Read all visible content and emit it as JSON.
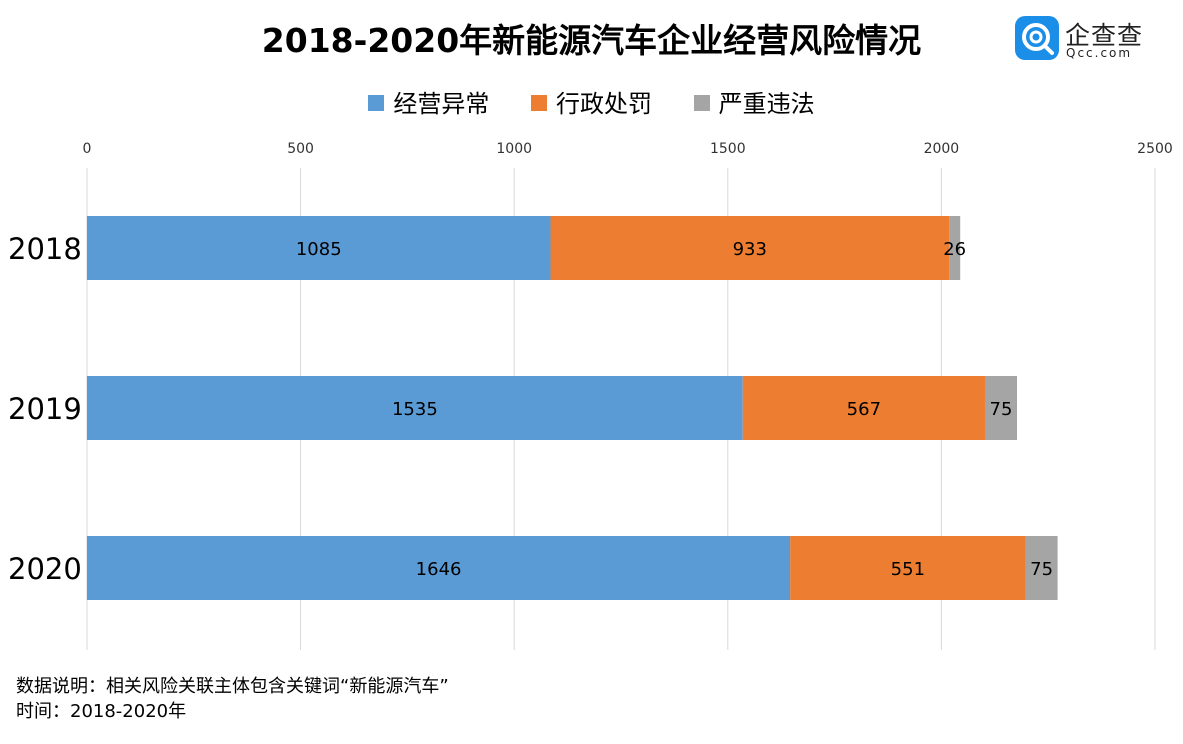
{
  "title": "2018-2020年新能源汽车企业经营风险情况",
  "logo": {
    "cn": "企查查",
    "en": "Qcc.com"
  },
  "chart_data": {
    "type": "bar",
    "orientation": "horizontal",
    "stacked": true,
    "categories": [
      "2018",
      "2019",
      "2020"
    ],
    "series": [
      {
        "name": "经营异常",
        "color": "#5b9bd5",
        "values": [
          1085,
          1535,
          1646
        ]
      },
      {
        "name": "行政处罚",
        "color": "#ed7d31",
        "values": [
          933,
          567,
          551
        ]
      },
      {
        "name": "严重违法",
        "color": "#a5a5a5",
        "values": [
          26,
          75,
          75
        ]
      }
    ],
    "xlim": [
      0,
      2500
    ],
    "xticks": [
      "0",
      "500",
      "1000",
      "1500",
      "2000",
      "2500"
    ],
    "xtick_values": [
      0,
      500,
      1000,
      1500,
      2000,
      2500
    ],
    "legend": "top-center",
    "grid": true
  },
  "footer": {
    "note": "数据说明：相关风险关联主体包含关键词“新能源汽车”",
    "time": "时间：2018-2020年"
  }
}
